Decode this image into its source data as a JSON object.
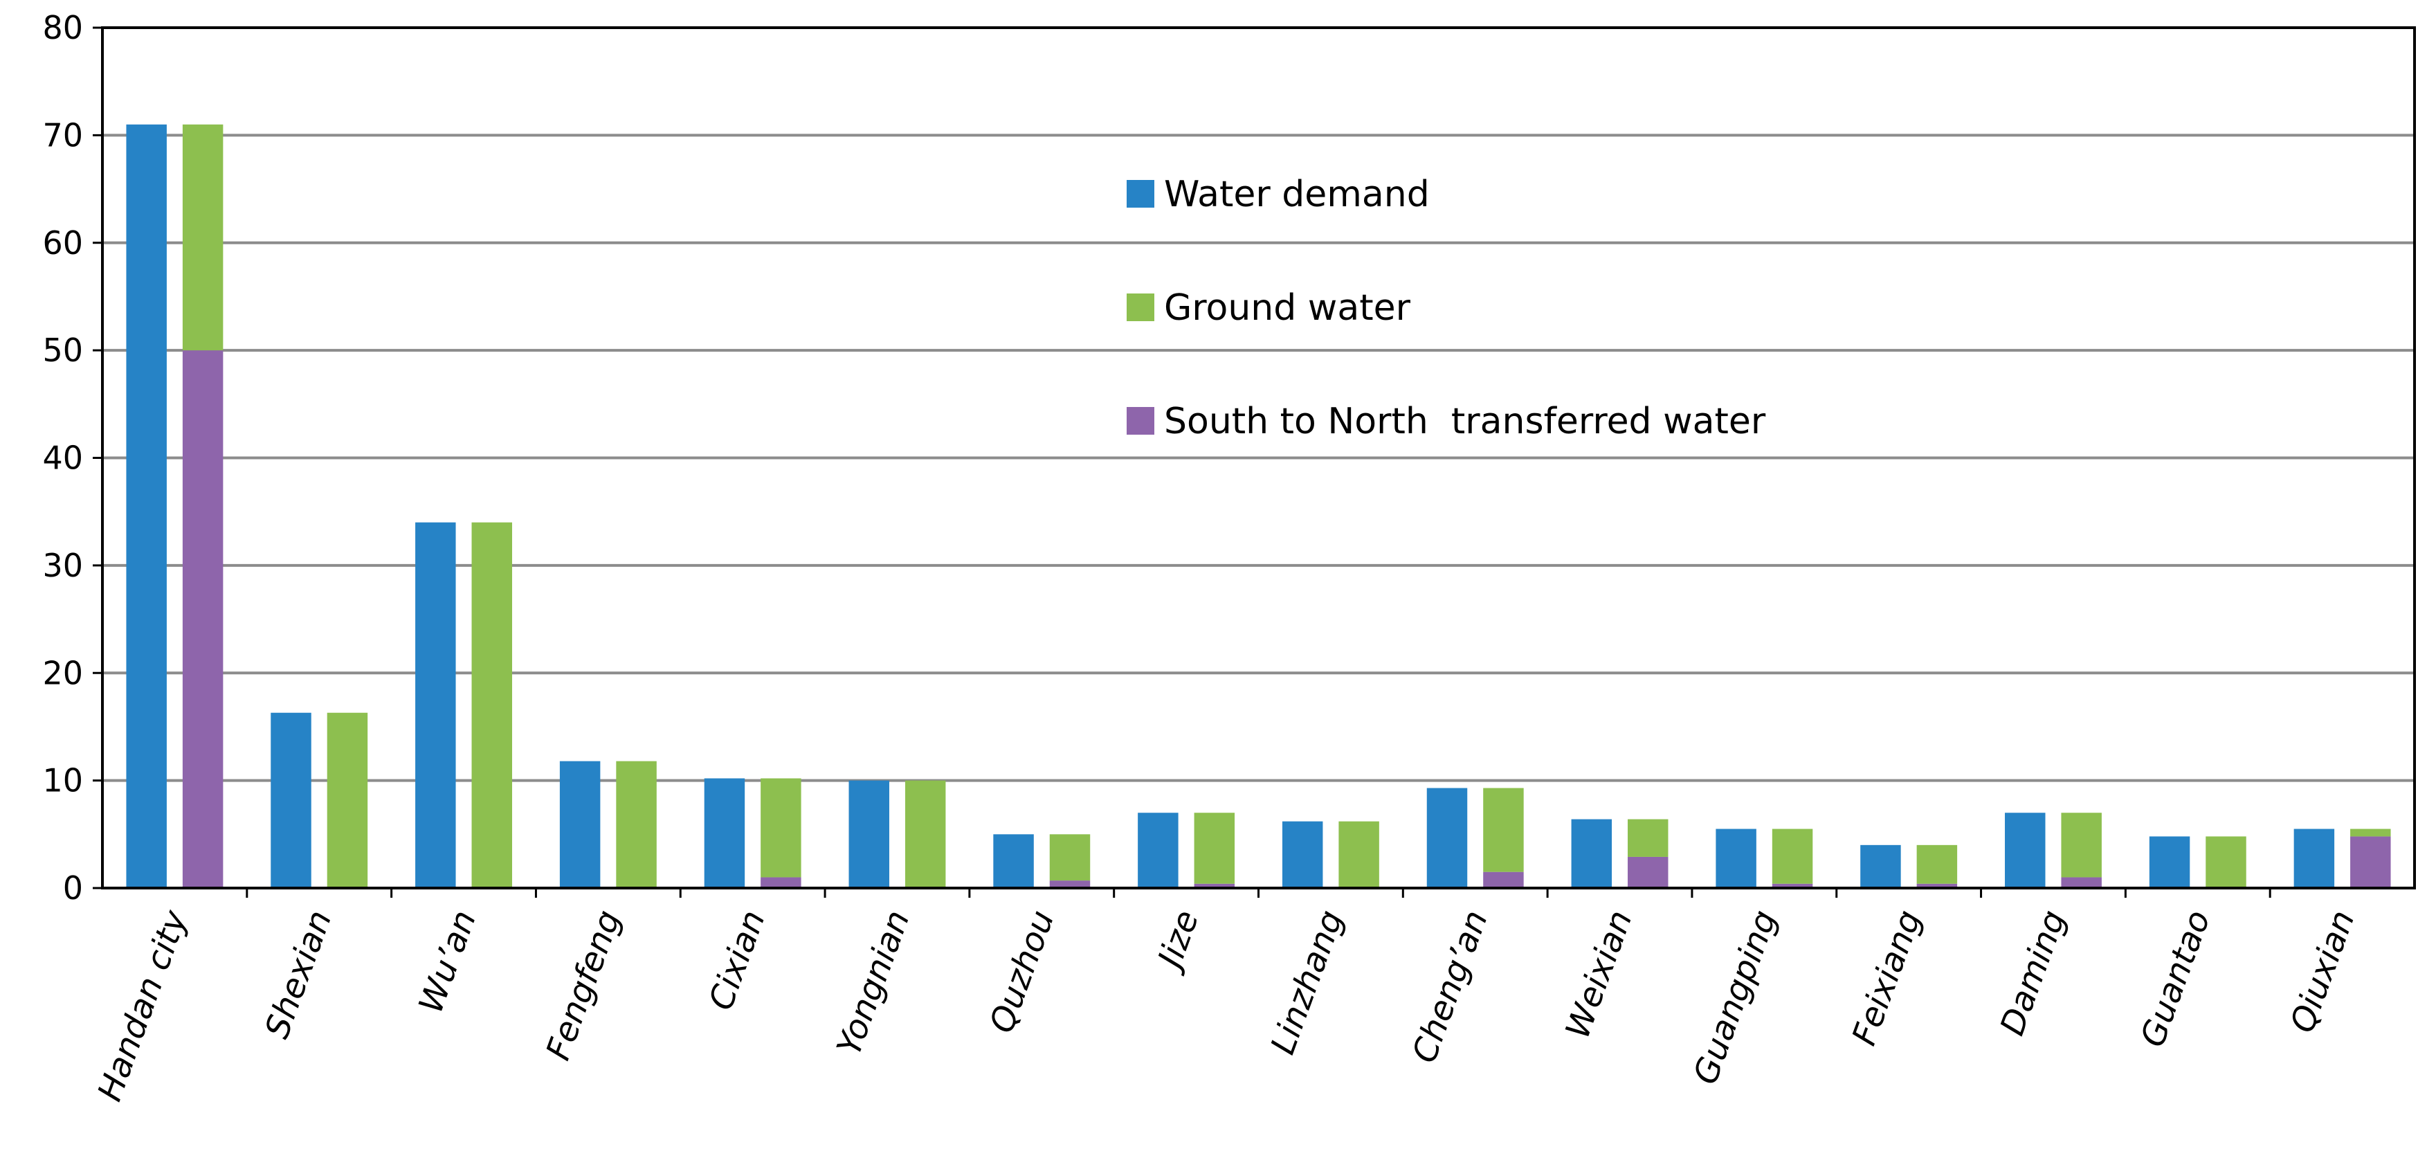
{
  "chart_data": {
    "type": "bar",
    "title": "",
    "xlabel": "",
    "ylabel": "",
    "ylim": [
      0,
      80
    ],
    "yticks": [
      0,
      10,
      20,
      30,
      40,
      50,
      60,
      70,
      80
    ],
    "grid": true,
    "legend_position": "top-center",
    "categories": [
      "Handan city",
      "Shexian",
      "Wu’an",
      "Fengfeng",
      "Cixian",
      "Yongnian",
      "Quzhou",
      "Jize",
      "Linzhang",
      "Cheng’an",
      "Weixian",
      "Guangping",
      "Feixiang",
      "Daming",
      "Guantao",
      "Qiuxian"
    ],
    "series": [
      {
        "name": "Water demand",
        "color": "#2683c6",
        "stack": "demand",
        "values": [
          71,
          16.3,
          34,
          11.8,
          10.2,
          10,
          5,
          7,
          6.2,
          9.3,
          6.4,
          5.5,
          4,
          7,
          4.8,
          5.5
        ]
      },
      {
        "name": "South to North  transferred water",
        "color": "#8e65ab",
        "stack": "supply",
        "values": [
          50,
          0,
          0,
          0,
          1,
          0,
          0.7,
          0.4,
          0,
          1.5,
          2.9,
          0.4,
          0.4,
          1,
          0,
          4.8
        ]
      },
      {
        "name": "Ground water",
        "color": "#8dbf4f",
        "stack": "supply",
        "values": [
          21,
          16.3,
          34,
          11.8,
          9.2,
          10,
          4.3,
          6.6,
          6.2,
          7.8,
          3.5,
          5.1,
          3.6,
          6,
          4.8,
          0.7
        ]
      }
    ],
    "legend_order": [
      "Water demand",
      "Ground water",
      "South to North  transferred water"
    ]
  }
}
